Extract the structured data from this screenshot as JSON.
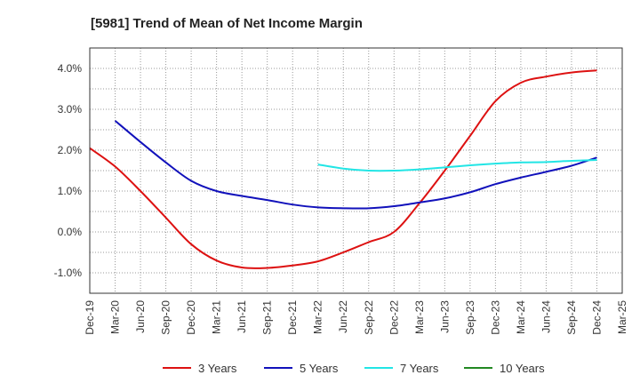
{
  "chart_data": {
    "type": "line",
    "title": "[5981]  Trend of Mean of Net Income Margin",
    "x_labels": [
      "Dec-19",
      "Mar-20",
      "Jun-20",
      "Sep-20",
      "Dec-20",
      "Mar-21",
      "Jun-21",
      "Sep-21",
      "Dec-21",
      "Mar-22",
      "Jun-22",
      "Sep-22",
      "Dec-22",
      "Mar-23",
      "Jun-23",
      "Sep-23",
      "Dec-23",
      "Mar-24",
      "Jun-24",
      "Sep-24",
      "Dec-24",
      "Mar-25"
    ],
    "y_ticks": [
      {
        "value": 4.0,
        "label": "4.0%"
      },
      {
        "value": 3.0,
        "label": "3.0%"
      },
      {
        "value": 2.0,
        "label": "2.0%"
      },
      {
        "value": 1.0,
        "label": "1.0%"
      },
      {
        "value": 0.0,
        "label": "0.0%"
      },
      {
        "value": -1.0,
        "label": "-1.0%"
      }
    ],
    "ylim": [
      -1.5,
      4.5
    ],
    "grid": true,
    "legend_position": "bottom",
    "series": [
      {
        "name": "3 Years",
        "color": "#dd1111",
        "values": [
          2.05,
          1.6,
          1.0,
          0.35,
          -0.3,
          -0.7,
          -0.87,
          -0.88,
          -0.82,
          -0.72,
          -0.5,
          -0.25,
          0.0,
          0.7,
          1.5,
          2.35,
          3.2,
          3.65,
          3.8,
          3.9,
          3.95,
          null
        ]
      },
      {
        "name": "5 Years",
        "color": "#1111bb",
        "values": [
          null,
          2.72,
          2.2,
          1.7,
          1.25,
          1.0,
          0.88,
          0.78,
          0.67,
          0.6,
          0.58,
          0.58,
          0.63,
          0.72,
          0.82,
          0.97,
          1.17,
          1.33,
          1.47,
          1.62,
          1.82,
          null
        ]
      },
      {
        "name": "7 Years",
        "color": "#22e5e5",
        "values": [
          null,
          null,
          null,
          null,
          null,
          null,
          null,
          null,
          null,
          1.65,
          1.55,
          1.5,
          1.5,
          1.53,
          1.58,
          1.63,
          1.67,
          1.7,
          1.71,
          1.74,
          1.76,
          null
        ]
      },
      {
        "name": "10 Years",
        "color": "#228822",
        "values": [
          null,
          null,
          null,
          null,
          null,
          null,
          null,
          null,
          null,
          null,
          null,
          null,
          null,
          null,
          null,
          null,
          null,
          null,
          null,
          null,
          null,
          null
        ]
      }
    ]
  }
}
